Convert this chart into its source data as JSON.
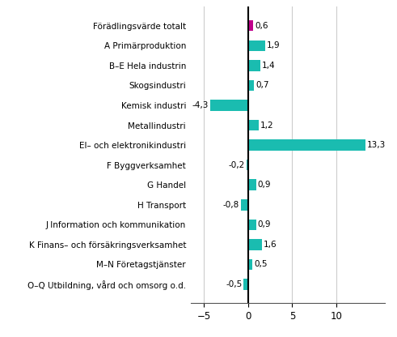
{
  "categories": [
    "O–Q Utbildning, vård och omsorg o.d.",
    "M–N Företagstjänster",
    "K Finans– och försäkringsverksamhet",
    "J Information och kommunikation",
    "H Transport",
    "G Handel",
    "F Byggverksamhet",
    "El– och elektronikindustri",
    "Metallindustri",
    "Kemisk industri",
    "Skogsindustri",
    "B–E Hela industrin",
    "A Primärproduktion",
    "Förädlingsvärde totalt"
  ],
  "values": [
    -0.5,
    0.5,
    1.6,
    0.9,
    -0.8,
    0.9,
    -0.2,
    13.3,
    1.2,
    -4.3,
    0.7,
    1.4,
    1.9,
    0.6
  ],
  "bar_color_default": "#1ABCB0",
  "bar_color_special": "#C0008C",
  "special_index": 13,
  "xlim": [
    -6.5,
    15.5
  ],
  "xticks": [
    -5,
    0,
    5,
    10
  ],
  "grid_color": "#cccccc",
  "label_fontsize": 7.5,
  "value_fontsize": 7.5,
  "tick_fontsize": 8.5,
  "bar_height": 0.55
}
